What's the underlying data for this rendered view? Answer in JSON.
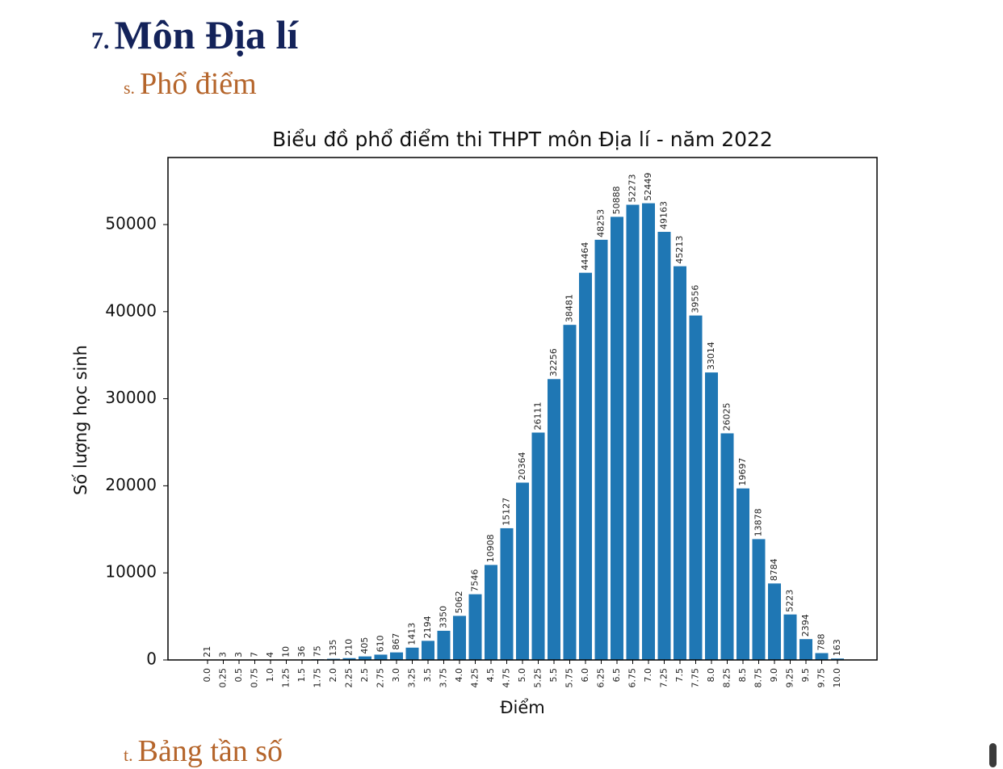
{
  "heading": {
    "number": "7.",
    "title": "Môn Địa lí"
  },
  "subheading": {
    "number": "s.",
    "title": "Phổ điểm"
  },
  "next_subheading": {
    "number": "t.",
    "title": "Bảng tần số"
  },
  "colors": {
    "bar": "#1f77b4",
    "heading": "#14235a",
    "subheading": "#b5652b"
  },
  "chart_data": {
    "type": "bar",
    "title": "Biểu đồ phổ điểm thi THPT môn Địa lí - năm 2022",
    "xlabel": "Điểm",
    "ylabel": "Số lượng học sinh",
    "ylim": [
      0,
      58000
    ],
    "yticks": [
      0,
      10000,
      20000,
      30000,
      40000,
      50000
    ],
    "ytick_labels": [
      "0",
      "10000",
      "20000",
      "30000",
      "40000",
      "50000"
    ],
    "categories": [
      "0.0",
      "0.25",
      "0.5",
      "0.75",
      "1.0",
      "1.25",
      "1.5",
      "1.75",
      "2.0",
      "2.25",
      "2.5",
      "2.75",
      "3.0",
      "3.25",
      "3.5",
      "3.75",
      "4.0",
      "4.25",
      "4.5",
      "4.75",
      "5.0",
      "5.25",
      "5.5",
      "5.75",
      "6.0",
      "6.25",
      "6.5",
      "6.75",
      "7.0",
      "7.25",
      "7.5",
      "7.75",
      "8.0",
      "8.25",
      "8.5",
      "8.75",
      "9.0",
      "9.25",
      "9.5",
      "9.75",
      "10.0"
    ],
    "values": [
      21,
      3,
      3,
      7,
      4,
      10,
      36,
      75,
      135,
      210,
      405,
      610,
      867,
      1413,
      2194,
      3350,
      5062,
      7546,
      10908,
      15127,
      20364,
      26111,
      32256,
      38481,
      44464,
      48253,
      50888,
      52273,
      52449,
      49163,
      45213,
      39556,
      33014,
      26025,
      19697,
      13878,
      8784,
      5223,
      2394,
      788,
      163
    ]
  }
}
